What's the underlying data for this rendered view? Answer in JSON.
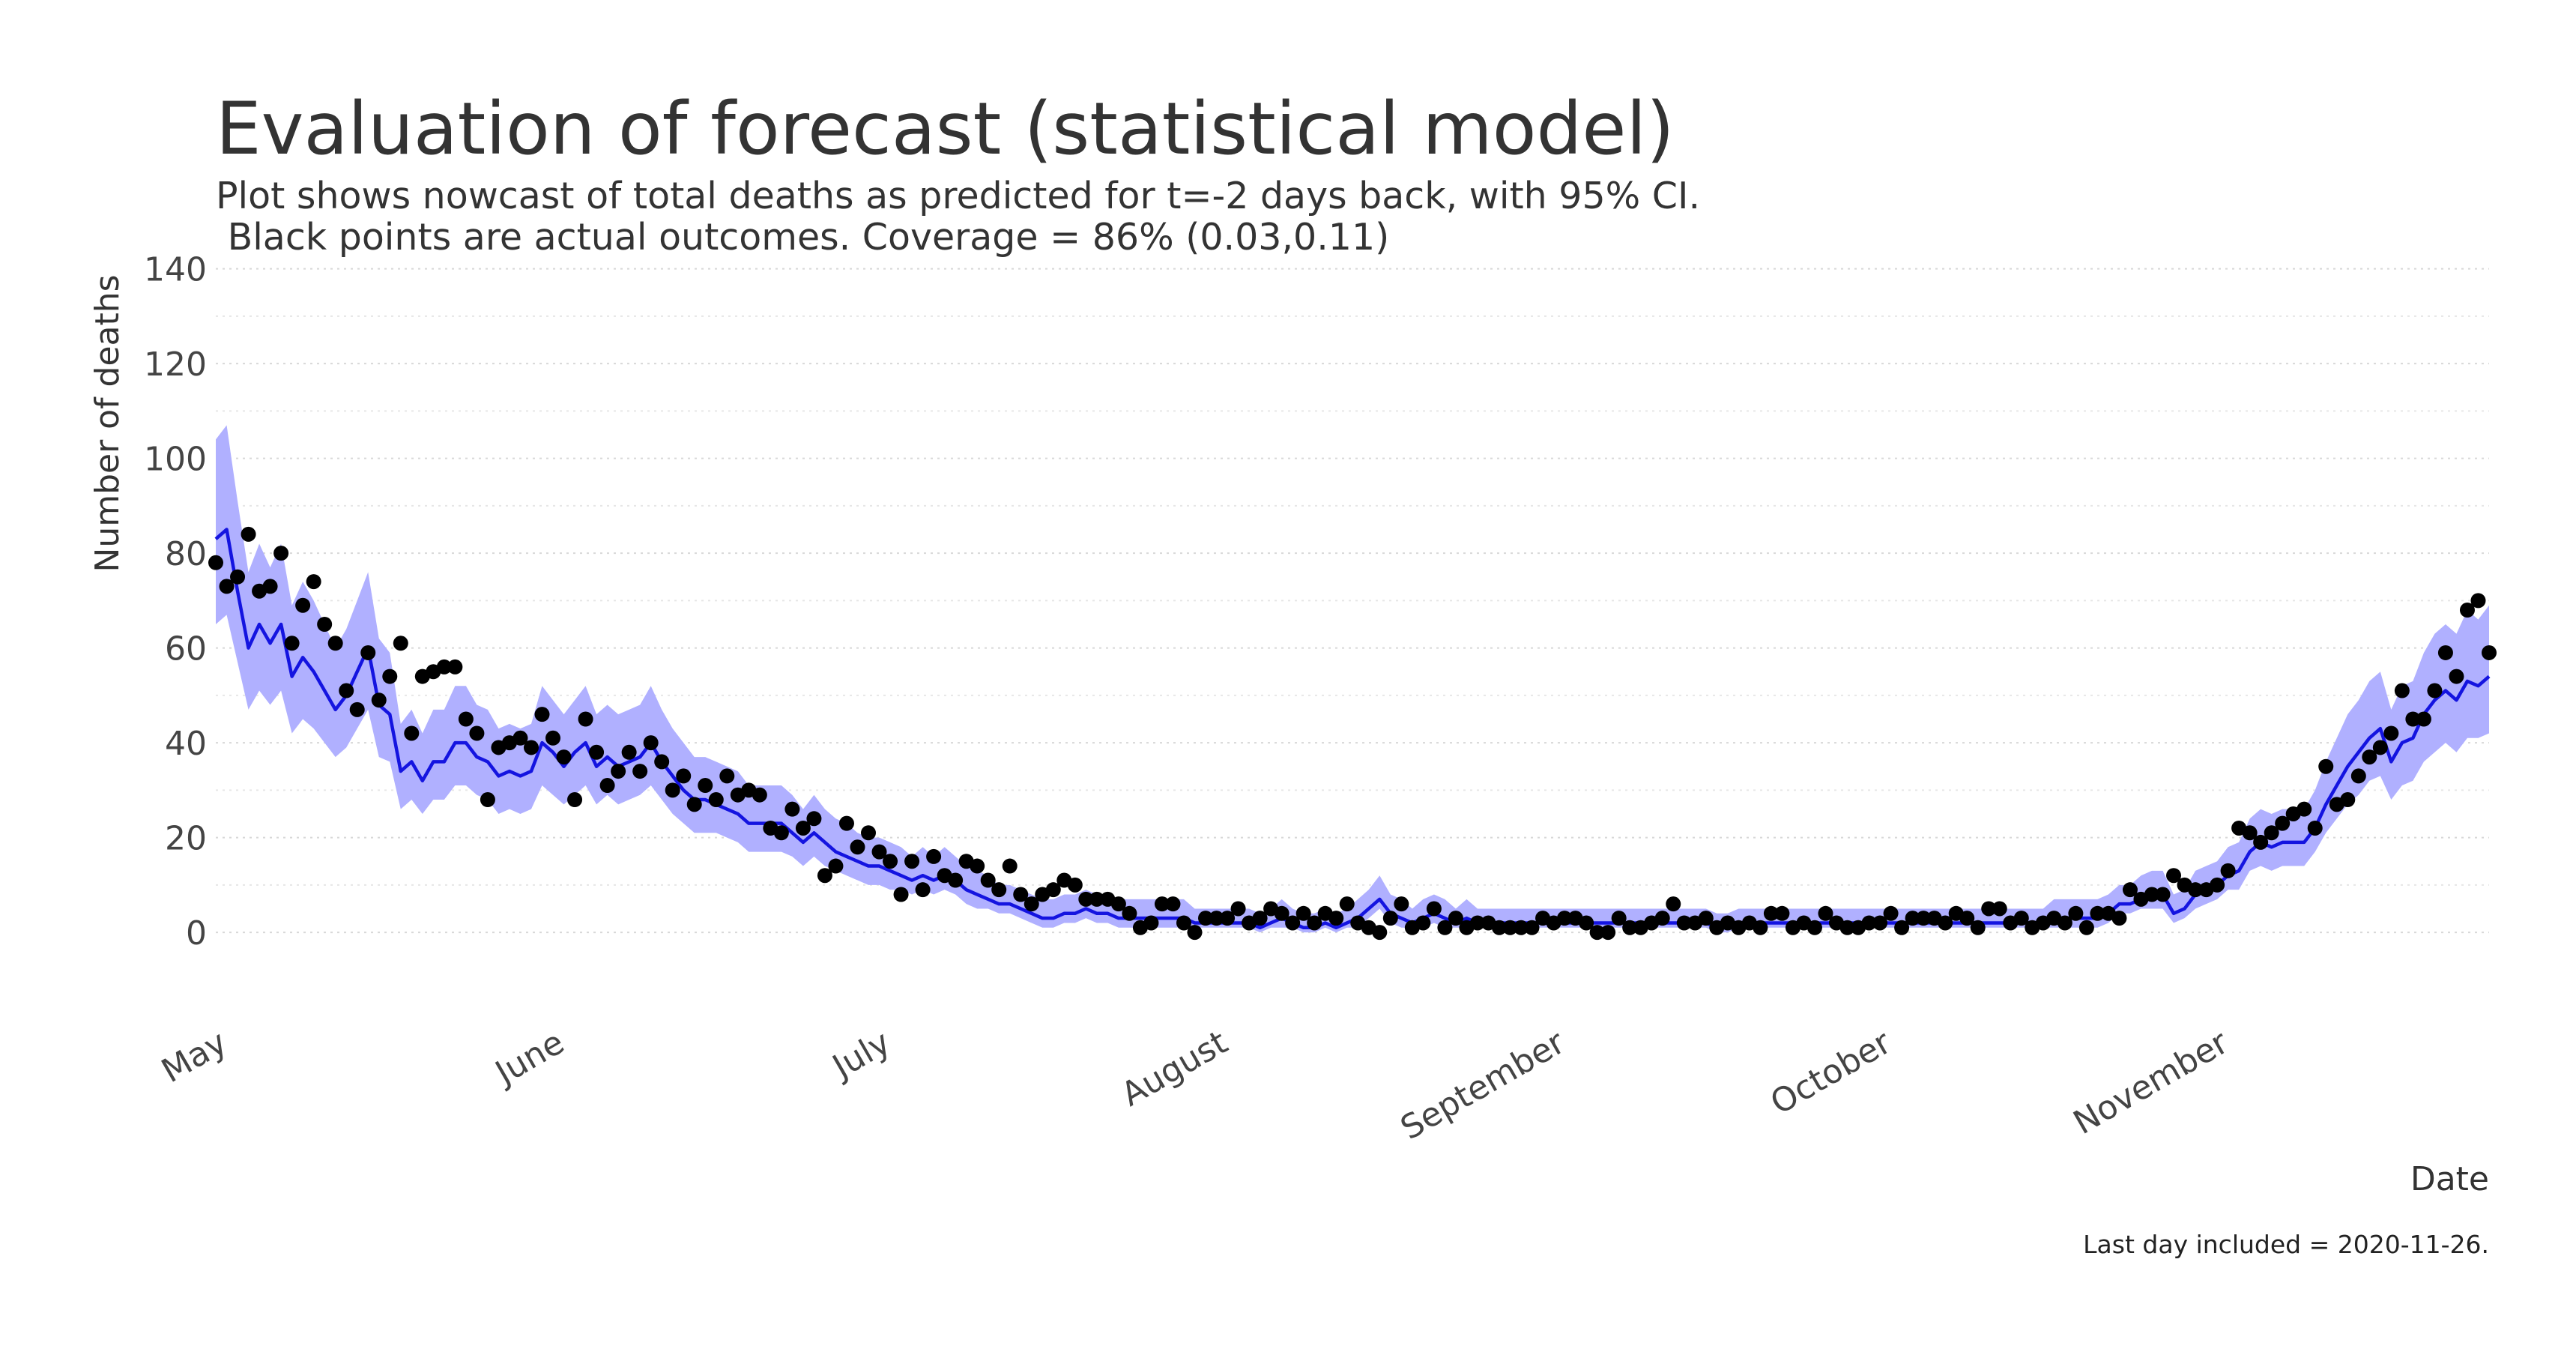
{
  "chart_data": {
    "type": "line",
    "title": "Evaluation of forecast (statistical model)",
    "subtitle": [
      "Plot shows nowcast of total deaths as predicted for t=-2 days back, with 95% CI.",
      " Black points are actual outcomes. Coverage = 86% (0.03,0.11)"
    ],
    "y_label": "Number of deaths",
    "x_label": "Date",
    "caption": "Last day included = 2020-11-26.",
    "ylim": [
      -12,
      142
    ],
    "yticks": [
      0,
      20,
      40,
      60,
      80,
      100,
      120,
      140
    ],
    "y_minor_ticks": [
      10,
      30,
      50,
      70,
      90,
      110,
      130
    ],
    "grid": true,
    "categories": [
      "May",
      null,
      null,
      null,
      null,
      null,
      null,
      null,
      null,
      null,
      null,
      null,
      null,
      null,
      null,
      null,
      null,
      null,
      null,
      null,
      null,
      null,
      null,
      null,
      null,
      null,
      null,
      null,
      null,
      null,
      null,
      "June",
      null,
      null,
      null,
      null,
      null,
      null,
      null,
      null,
      null,
      null,
      null,
      null,
      null,
      null,
      null,
      null,
      null,
      null,
      null,
      null,
      null,
      null,
      null,
      null,
      null,
      null,
      null,
      null,
      null,
      "July",
      null,
      null,
      null,
      null,
      null,
      null,
      null,
      null,
      null,
      null,
      null,
      null,
      null,
      null,
      null,
      null,
      null,
      null,
      null,
      null,
      null,
      null,
      null,
      null,
      null,
      null,
      null,
      null,
      null,
      null,
      "August",
      null,
      null,
      null,
      null,
      null,
      null,
      null,
      null,
      null,
      null,
      null,
      null,
      null,
      null,
      null,
      null,
      null,
      null,
      null,
      null,
      null,
      null,
      null,
      null,
      null,
      null,
      null,
      null,
      null,
      null,
      "September",
      null,
      null,
      null,
      null,
      null,
      null,
      null,
      null,
      null,
      null,
      null,
      null,
      null,
      null,
      null,
      null,
      null,
      null,
      null,
      null,
      null,
      null,
      null,
      null,
      null,
      null,
      null,
      null,
      null,
      "October",
      null,
      null,
      null,
      null,
      null,
      null,
      null,
      null,
      null,
      null,
      null,
      null,
      null,
      null,
      null,
      null,
      null,
      null,
      null,
      null,
      null,
      null,
      null,
      null,
      null,
      null,
      null,
      null,
      null,
      null,
      "November",
      null,
      null,
      null,
      null,
      null,
      null,
      null,
      null,
      null,
      null,
      null,
      null,
      null,
      null,
      null,
      null,
      null,
      null,
      null,
      null,
      null,
      null,
      null,
      null,
      null
    ],
    "band": {
      "color": "#b0b0ff",
      "lower": [
        65,
        67,
        57,
        47,
        51,
        48,
        51,
        42,
        45,
        43,
        40,
        37,
        39,
        43,
        47,
        37,
        36,
        26,
        28,
        25,
        28,
        28,
        31,
        31,
        29,
        28,
        25,
        26,
        25,
        26,
        31,
        29,
        27,
        29,
        31,
        27,
        29,
        27,
        28,
        29,
        31,
        28,
        25,
        23,
        21,
        21,
        21,
        20,
        19,
        17,
        17,
        17,
        17,
        16,
        14,
        16,
        14,
        13,
        12,
        11,
        10,
        10,
        9,
        9,
        8,
        9,
        8,
        9,
        8,
        6,
        5,
        5,
        4,
        4,
        3,
        2,
        1,
        1,
        2,
        2,
        3,
        2,
        2,
        1,
        1,
        1,
        1,
        1,
        1,
        1,
        1,
        1,
        1,
        1,
        1,
        1,
        0,
        1,
        1,
        1,
        0,
        0,
        1,
        0,
        1,
        1,
        3,
        5,
        2,
        1,
        1,
        1,
        2,
        1,
        1,
        1,
        1,
        1,
        1,
        1,
        1,
        1,
        1,
        1,
        1,
        1,
        1,
        1,
        1,
        1,
        1,
        1,
        1,
        1,
        1,
        1,
        1,
        1,
        0,
        0,
        1,
        1,
        1,
        1,
        1,
        1,
        1,
        1,
        1,
        1,
        1,
        1,
        1,
        1,
        1,
        1,
        1,
        1,
        1,
        1,
        1,
        1,
        1,
        1,
        1,
        1,
        1,
        1,
        1,
        1,
        1,
        1,
        1,
        1,
        2,
        4,
        4,
        5,
        5,
        5,
        2,
        3,
        5,
        6,
        7,
        9,
        9,
        13,
        14,
        13,
        14,
        14,
        14,
        17,
        21,
        24,
        27,
        29,
        32,
        33,
        28,
        31,
        32,
        36,
        38,
        40,
        38,
        41,
        41,
        42
      ],
      "upper": [
        104,
        107,
        91,
        76,
        82,
        77,
        82,
        69,
        74,
        70,
        65,
        60,
        64,
        70,
        76,
        62,
        59,
        44,
        47,
        42,
        47,
        47,
        52,
        52,
        48,
        47,
        43,
        44,
        43,
        44,
        52,
        49,
        46,
        49,
        52,
        46,
        48,
        46,
        47,
        48,
        52,
        47,
        43,
        40,
        37,
        37,
        36,
        35,
        34,
        31,
        31,
        31,
        31,
        29,
        26,
        29,
        26,
        24,
        23,
        21,
        20,
        20,
        19,
        18,
        16,
        18,
        16,
        18,
        16,
        14,
        13,
        12,
        10,
        10,
        9,
        8,
        7,
        7,
        8,
        8,
        9,
        8,
        8,
        7,
        7,
        7,
        7,
        7,
        7,
        7,
        5,
        5,
        5,
        5,
        5,
        5,
        4,
        5,
        7,
        5,
        4,
        4,
        5,
        4,
        5,
        7,
        9,
        12,
        8,
        7,
        5,
        7,
        8,
        7,
        5,
        7,
        5,
        5,
        5,
        5,
        5,
        5,
        5,
        5,
        5,
        5,
        5,
        5,
        5,
        5,
        5,
        5,
        5,
        5,
        5,
        5,
        5,
        5,
        4,
        4,
        5,
        5,
        5,
        5,
        5,
        5,
        5,
        5,
        5,
        5,
        5,
        5,
        5,
        5,
        5,
        5,
        5,
        5,
        5,
        5,
        5,
        5,
        5,
        5,
        5,
        5,
        5,
        5,
        5,
        7,
        7,
        7,
        7,
        7,
        8,
        10,
        10,
        12,
        13,
        13,
        8,
        9,
        13,
        14,
        15,
        18,
        19,
        24,
        26,
        25,
        26,
        26,
        26,
        30,
        36,
        41,
        46,
        49,
        53,
        55,
        47,
        52,
        53,
        59,
        63,
        65,
        63,
        68,
        66,
        69
      ]
    },
    "forecast": {
      "color": "#1414e0",
      "values": [
        83,
        85,
        72,
        60,
        65,
        61,
        65,
        54,
        58,
        55,
        51,
        47,
        50,
        55,
        60,
        48,
        46,
        34,
        36,
        32,
        36,
        36,
        40,
        40,
        37,
        36,
        33,
        34,
        33,
        34,
        40,
        38,
        35,
        38,
        40,
        35,
        37,
        35,
        36,
        37,
        40,
        36,
        33,
        30,
        28,
        28,
        27,
        26,
        25,
        23,
        23,
        23,
        23,
        21,
        19,
        21,
        19,
        17,
        16,
        15,
        14,
        14,
        13,
        12,
        11,
        12,
        11,
        12,
        11,
        9,
        8,
        7,
        6,
        6,
        5,
        4,
        3,
        3,
        4,
        4,
        5,
        4,
        4,
        3,
        3,
        3,
        3,
        3,
        3,
        3,
        2,
        2,
        2,
        2,
        2,
        2,
        1,
        2,
        3,
        2,
        1,
        1,
        2,
        1,
        2,
        3,
        5,
        7,
        4,
        3,
        2,
        3,
        4,
        3,
        2,
        3,
        2,
        2,
        2,
        2,
        2,
        2,
        2,
        2,
        2,
        2,
        2,
        2,
        2,
        2,
        2,
        2,
        2,
        2,
        2,
        2,
        2,
        2,
        1,
        1,
        2,
        2,
        2,
        2,
        2,
        2,
        2,
        2,
        2,
        2,
        2,
        2,
        2,
        2,
        2,
        2,
        2,
        2,
        2,
        2,
        2,
        2,
        2,
        2,
        2,
        2,
        2,
        2,
        2,
        3,
        3,
        3,
        3,
        3,
        4,
        6,
        6,
        7,
        8,
        8,
        4,
        5,
        8,
        9,
        10,
        12,
        13,
        17,
        19,
        18,
        19,
        19,
        19,
        22,
        27,
        31,
        35,
        38,
        41,
        43,
        36,
        40,
        41,
        46,
        49,
        51,
        49,
        53,
        52,
        54
      ]
    },
    "actual": {
      "color": "#000000",
      "values": [
        78,
        73,
        75,
        84,
        72,
        73,
        80,
        61,
        69,
        74,
        65,
        61,
        51,
        47,
        59,
        49,
        54,
        61,
        42,
        54,
        55,
        56,
        56,
        45,
        42,
        28,
        39,
        40,
        41,
        39,
        46,
        41,
        37,
        28,
        45,
        38,
        31,
        34,
        38,
        34,
        40,
        36,
        30,
        33,
        27,
        31,
        28,
        33,
        29,
        30,
        29,
        22,
        21,
        26,
        22,
        24,
        12,
        14,
        23,
        18,
        21,
        17,
        15,
        8,
        15,
        9,
        16,
        12,
        11,
        15,
        14,
        11,
        9,
        14,
        8,
        6,
        8,
        9,
        11,
        10,
        7,
        7,
        7,
        6,
        4,
        1,
        2,
        6,
        6,
        2,
        0,
        3,
        3,
        3,
        5,
        2,
        3,
        5,
        4,
        2,
        4,
        2,
        4,
        3,
        6,
        2,
        1,
        0,
        3,
        6,
        1,
        2,
        5,
        1,
        3,
        1,
        2,
        2,
        1,
        1,
        1,
        1,
        3,
        2,
        3,
        3,
        2,
        0,
        0,
        3,
        1,
        1,
        2,
        3,
        6,
        2,
        2,
        3,
        1,
        2,
        1,
        2,
        1,
        4,
        4,
        1,
        2,
        1,
        4,
        2,
        1,
        1,
        2,
        2,
        4,
        1,
        3,
        3,
        3,
        2,
        4,
        3,
        1,
        5,
        5,
        2,
        3,
        1,
        2,
        3,
        2,
        4,
        1,
        4,
        4,
        3,
        9,
        7,
        8,
        8,
        12,
        10,
        9,
        9,
        10,
        13,
        22,
        21,
        19,
        21,
        23,
        25,
        26,
        22,
        35,
        27,
        28,
        33,
        37,
        39,
        42,
        51,
        45,
        45,
        51,
        59,
        54,
        68,
        70,
        59
      ]
    }
  }
}
